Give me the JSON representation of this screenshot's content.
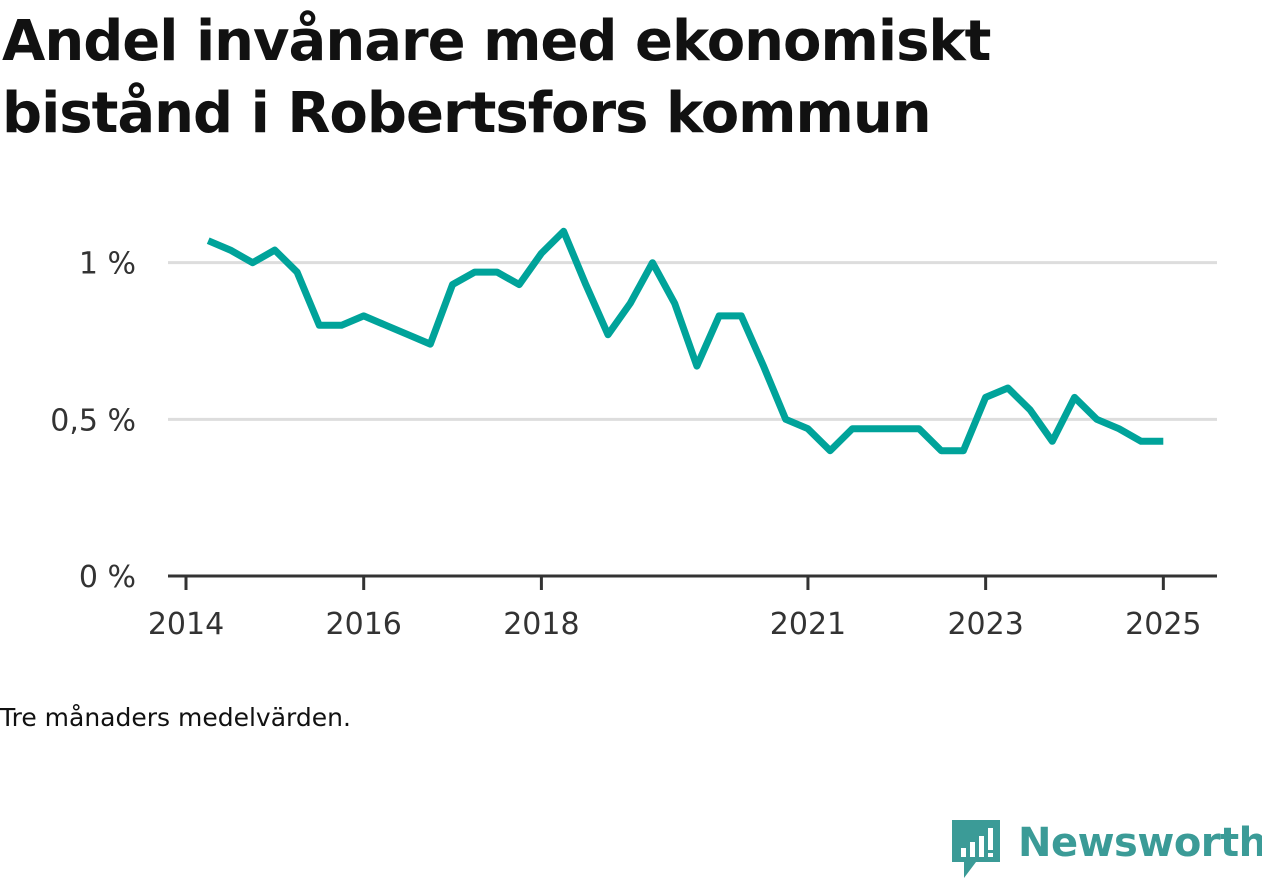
{
  "title": "Andel invånare med ekonomiskt bistånd i Robertsfors kommun",
  "note": "Tre månaders medelvärden.",
  "brand": {
    "name": "Newsworthy",
    "icon": "newsworthy-logo-icon",
    "color": "#3b9b97"
  },
  "chart_data": {
    "type": "line",
    "title": "Andel invånare med ekonomiskt bistånd i Robertsfors kommun",
    "xlabel": "",
    "ylabel": "",
    "ylim": [
      0,
      1.2
    ],
    "yticks": [
      {
        "value": 0,
        "label": "0 %"
      },
      {
        "value": 0.5,
        "label": "0,5 %"
      },
      {
        "value": 1,
        "label": "1 %"
      }
    ],
    "xticks": [
      "2014",
      "2016",
      "2018",
      "2021",
      "2023",
      "2025"
    ],
    "grid": true,
    "line_color": "#00a39a",
    "series": [
      {
        "x": [
          "2014-04",
          "2014-07",
          "2014-10",
          "2015-01",
          "2015-04",
          "2015-07",
          "2015-10",
          "2016-01",
          "2016-04",
          "2016-07",
          "2016-10",
          "2017-01",
          "2017-04",
          "2017-07",
          "2017-10",
          "2018-01",
          "2018-04",
          "2018-07",
          "2018-10",
          "2019-01",
          "2019-04",
          "2019-07",
          "2019-10",
          "2020-01",
          "2020-04",
          "2020-07",
          "2020-10",
          "2021-01",
          "2021-04",
          "2021-07",
          "2021-10",
          "2022-01",
          "2022-04",
          "2022-07",
          "2022-10",
          "2023-01",
          "2023-04",
          "2023-07",
          "2023-10",
          "2024-01",
          "2024-04",
          "2024-07",
          "2024-10",
          "2025-01"
        ],
        "values": [
          1.07,
          1.04,
          1.0,
          1.04,
          0.97,
          0.8,
          0.8,
          0.83,
          0.8,
          0.77,
          0.74,
          0.93,
          0.97,
          0.97,
          0.93,
          1.03,
          1.1,
          0.93,
          0.77,
          0.87,
          1.0,
          0.87,
          0.67,
          0.83,
          0.83,
          0.67,
          0.5,
          0.47,
          0.4,
          0.47,
          0.47,
          0.47,
          0.47,
          0.4,
          0.4,
          0.57,
          0.6,
          0.53,
          0.43,
          0.57,
          0.5,
          0.47,
          0.43,
          0.43
        ]
      }
    ]
  }
}
